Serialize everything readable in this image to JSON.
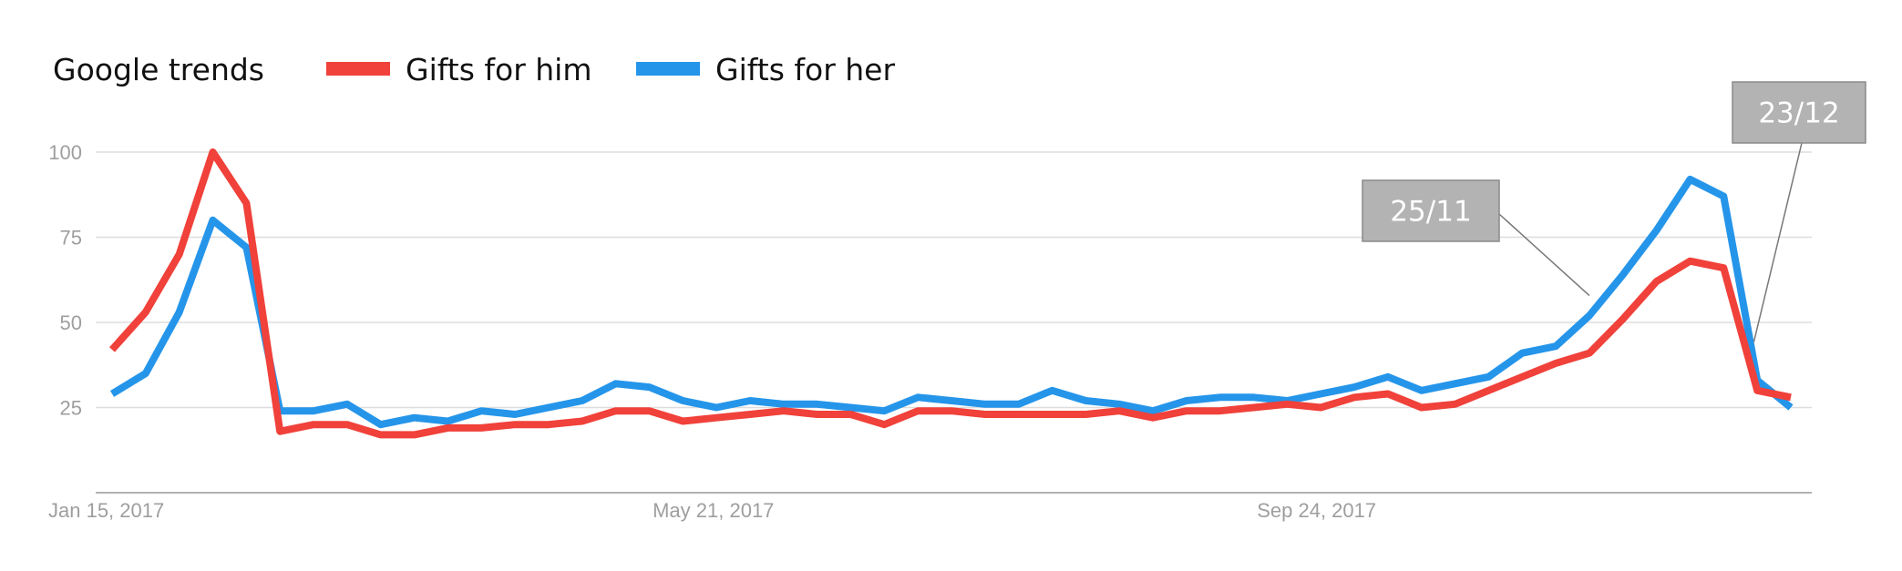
{
  "chart_data": {
    "type": "line",
    "title": "Google trends",
    "xlabel": "",
    "ylabel": "",
    "ylim": [
      0,
      100
    ],
    "yticks": [
      "100",
      "75",
      "50",
      "25"
    ],
    "xtick_labels": [
      "Jan 15, 2017",
      "May 21, 2017",
      "Sep 24, 2017"
    ],
    "grid": true,
    "legend_position": "top-left",
    "x": [
      "2017-01-15",
      "2017-01-22",
      "2017-01-29",
      "2017-02-05",
      "2017-02-12",
      "2017-02-19",
      "2017-02-26",
      "2017-03-05",
      "2017-03-12",
      "2017-03-19",
      "2017-03-26",
      "2017-04-02",
      "2017-04-09",
      "2017-04-16",
      "2017-04-23",
      "2017-04-30",
      "2017-05-07",
      "2017-05-14",
      "2017-05-21",
      "2017-05-28",
      "2017-06-04",
      "2017-06-11",
      "2017-06-18",
      "2017-06-25",
      "2017-07-02",
      "2017-07-09",
      "2017-07-16",
      "2017-07-23",
      "2017-07-30",
      "2017-08-06",
      "2017-08-13",
      "2017-08-20",
      "2017-08-27",
      "2017-09-03",
      "2017-09-10",
      "2017-09-17",
      "2017-09-24",
      "2017-10-01",
      "2017-10-08",
      "2017-10-15",
      "2017-10-22",
      "2017-10-29",
      "2017-11-05",
      "2017-11-12",
      "2017-11-19",
      "2017-11-26",
      "2017-12-03",
      "2017-12-10",
      "2017-12-17",
      "2017-12-24",
      "2017-12-31"
    ],
    "series": [
      {
        "name": "Gifts for him",
        "color": "#f0413a",
        "values": [
          42,
          53,
          70,
          100,
          85,
          18,
          20,
          20,
          17,
          17,
          19,
          19,
          20,
          20,
          21,
          24,
          24,
          21,
          22,
          23,
          24,
          23,
          23,
          20,
          24,
          24,
          23,
          23,
          23,
          23,
          24,
          22,
          24,
          24,
          25,
          26,
          25,
          28,
          29,
          25,
          26,
          30,
          34,
          38,
          41,
          51,
          62,
          68,
          66,
          30,
          28
        ]
      },
      {
        "name": "Gifts for her",
        "color": "#2595ea",
        "values": [
          29,
          35,
          53,
          80,
          72,
          24,
          24,
          26,
          20,
          22,
          21,
          24,
          23,
          25,
          27,
          32,
          31,
          27,
          25,
          27,
          26,
          26,
          25,
          24,
          28,
          27,
          26,
          26,
          30,
          27,
          26,
          24,
          27,
          28,
          28,
          27,
          29,
          31,
          34,
          30,
          32,
          34,
          41,
          43,
          52,
          64,
          77,
          92,
          87,
          33,
          25
        ]
      }
    ],
    "annotations": [
      {
        "text": "25/11",
        "index": 44,
        "series": "Gifts for her"
      },
      {
        "text": "23/12",
        "index": 48.9,
        "series": "Gifts for her"
      }
    ],
    "colors": {
      "grid": "#dddddd",
      "axis": "#999999",
      "tick_text": "#9e9e9e",
      "callout_bg": "#b3b3b3",
      "callout_border": "#8a8a8a"
    }
  }
}
